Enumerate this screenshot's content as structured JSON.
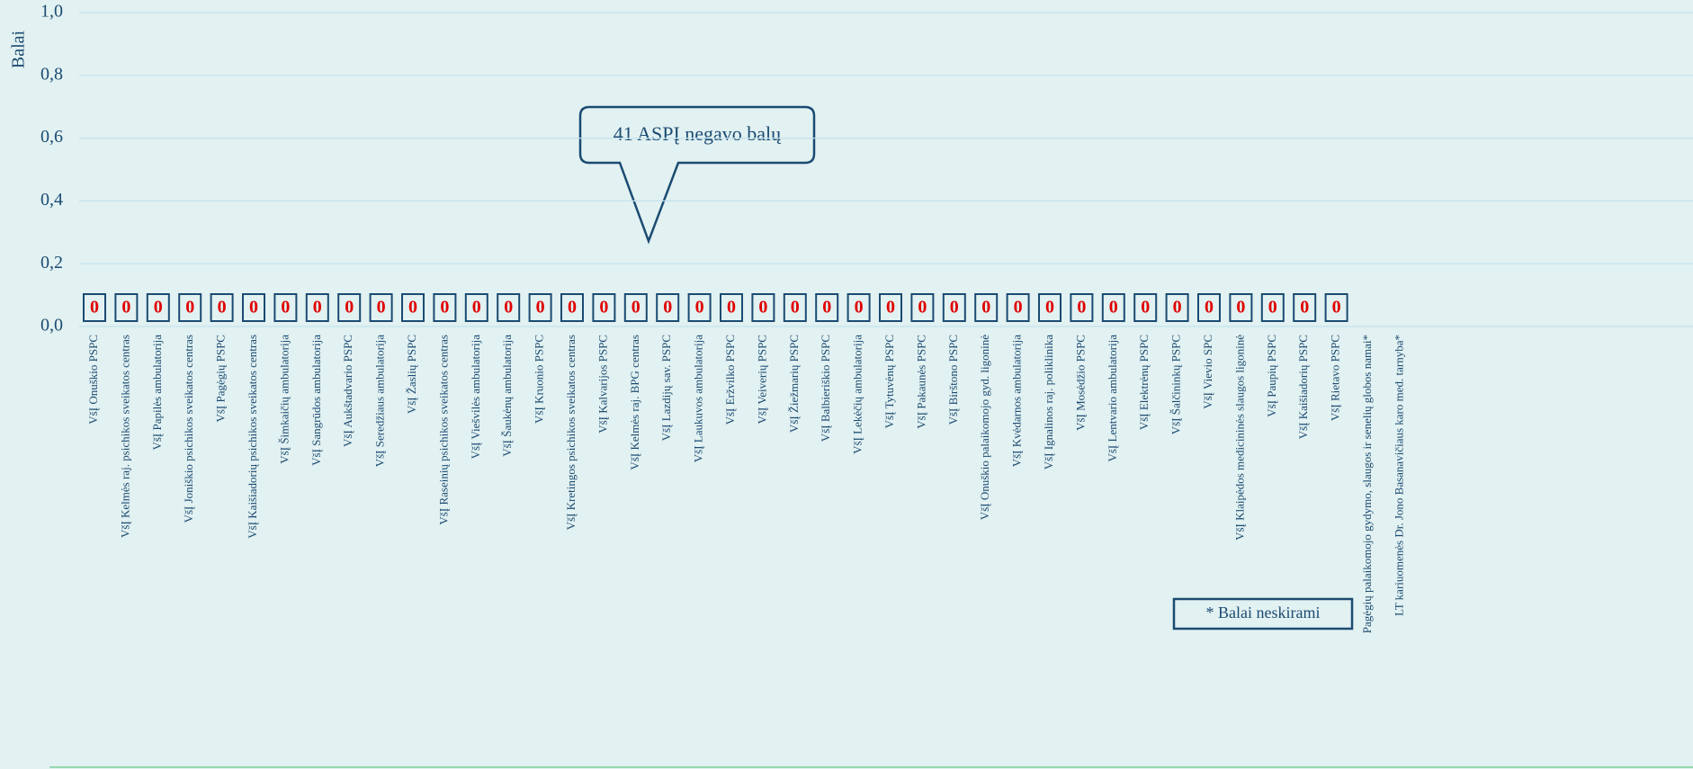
{
  "chart_data": {
    "type": "bar",
    "ylabel": "Balai",
    "annotations": [
      "41 ASPĮ negavo balų",
      "* Balai neskirami"
    ],
    "categories": [
      "VšĮ Onuškio PSPC",
      "VšĮ Kelmės raj. psichikos sveikatos centras",
      "VšĮ Papilės ambulatorija",
      "VšĮ Joniškio psichikos sveikatos centras",
      "VšĮ Pagėgių PSPC",
      "VšĮ Kaišiadorių psichikos sveikatos centras",
      "VšĮ Šimkaičių ambulatorija",
      "VšĮ Sangrūdos ambulatorija",
      "VšĮ Aukštadvario PSPC",
      "VšĮ Seredžiaus ambulatorija",
      "VšĮ Žaslių PSPC",
      "VšĮ Raseinių psichikos sveikatos centras",
      "VšĮ Viešvilės ambulatorija",
      "VšĮ Šaukėnų ambulatorija",
      "VšĮ Kruonio PSPC",
      "VšĮ Kretingos psichikos sveikatos centras",
      "VšĮ Kalvarijos PSPC",
      "VšĮ Kelmės raj. BPG centras",
      "VšĮ Lazdijų sav. PSPC",
      "VšĮ Laukuvos ambulatorija",
      "VšĮ Eržvilko PSPC",
      "VšĮ Veiverių PSPC",
      "VšĮ Žiežmarių PSPC",
      "VšĮ Balbieriškio PSPC",
      "VšĮ Lekėčių ambulatorija",
      "VšĮ Tytuvėnų PSPC",
      "VšĮ Pakaunės PSPC",
      "VšĮ Birštono PSPC",
      "VšĮ Onuškio palaikomojo gyd. ligoninė",
      "VšĮ Kvėdarnos ambulatorija",
      "VšĮ Ignalinos raj. poliklinika",
      "VšĮ Mosėdžio PSPC",
      "VšĮ Lentvario ambulatorija",
      "VšĮ Elektrėnų PSPC",
      "VšĮ Šalčininkų PSPC",
      "VšĮ Vievio SPC",
      "VšĮ Klaipėdos medicininės slaugos ligoninė",
      "VšĮ Paupių PSPC",
      "VšĮ Kaišiadorių PSPC",
      "VšĮ Rietavo PSPC",
      "Pagėgių palaikomojo gydymo, slaugos ir senelių globos namai*",
      "LT kariuomenės Dr. Jono Basanavičiaus karo med. tarnyba*"
    ],
    "values": [
      0,
      0,
      0,
      0,
      0,
      0,
      0,
      0,
      0,
      0,
      0,
      0,
      0,
      0,
      0,
      0,
      0,
      0,
      0,
      0,
      0,
      0,
      0,
      0,
      0,
      0,
      0,
      0,
      0,
      0,
      0,
      0,
      0,
      0,
      0,
      0,
      0,
      0,
      0,
      0,
      null,
      null
    ],
    "color": "#1b4b72",
    "label_color": "#e00000",
    "ylim": [
      0,
      1
    ],
    "yticks": [
      {
        "value": 0,
        "label": "0,0"
      },
      {
        "value": 0.2,
        "label": "0,2"
      },
      {
        "value": 0.4,
        "label": "0,4"
      },
      {
        "value": 0.6,
        "label": "0,6"
      },
      {
        "value": 0.8,
        "label": "0,8"
      },
      {
        "value": 1,
        "label": "1,0"
      }
    ],
    "grid": true
  }
}
